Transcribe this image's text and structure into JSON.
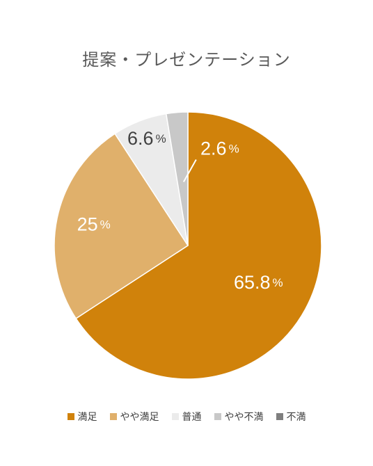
{
  "chart_data": {
    "type": "pie",
    "title": "提案・プレゼンテーション",
    "categories": [
      "満足",
      "やや満足",
      "普通",
      "やや不満",
      "不満"
    ],
    "values": [
      65.8,
      25,
      6.6,
      2.6,
      0
    ],
    "labels": [
      "65.8",
      "25",
      "6.6",
      "2.6",
      ""
    ],
    "unit": "%",
    "colors": [
      "#D0820B",
      "#E0B06B",
      "#EBEBEB",
      "#C8C8C8",
      "#7F7F7F"
    ],
    "label_colors": [
      "#ffffff",
      "#ffffff",
      "#404040",
      "#ffffff",
      "#404040"
    ],
    "start": "12 o'clock, clockwise",
    "legend_position": "bottom"
  }
}
